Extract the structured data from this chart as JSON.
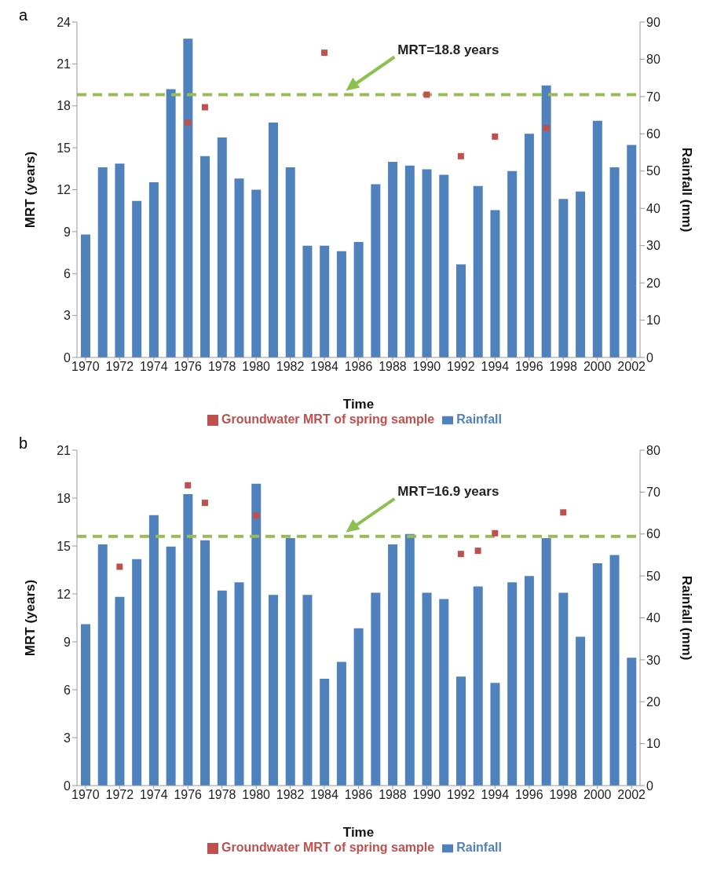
{
  "chart_data": [
    {
      "type": "bar",
      "title": "a",
      "xlabel": "Time",
      "ylabel": "MRT (years)",
      "y2label": "Rainfall (mm)",
      "x": [
        1970,
        1971,
        1972,
        1973,
        1974,
        1975,
        1976,
        1977,
        1978,
        1979,
        1980,
        1981,
        1982,
        1983,
        1984,
        1985,
        1986,
        1987,
        1988,
        1989,
        1990,
        1991,
        1992,
        1993,
        1994,
        1995,
        1996,
        1997,
        1998,
        1999,
        2000,
        2001,
        2002
      ],
      "xlim": [
        1969.5,
        2002.5
      ],
      "xticks": [
        1970,
        1972,
        1974,
        1976,
        1978,
        1980,
        1982,
        1984,
        1986,
        1988,
        1990,
        1992,
        1994,
        1996,
        1998,
        2000,
        2002
      ],
      "ylim": [
        0,
        24
      ],
      "yticks": [
        0,
        3,
        6,
        9,
        12,
        15,
        18,
        21,
        24
      ],
      "y2lim": [
        0,
        90
      ],
      "y2ticks": [
        0,
        10,
        20,
        30,
        40,
        50,
        60,
        70,
        80,
        90
      ],
      "series": [
        {
          "name": "Rainfall",
          "axis": "y2",
          "color": "#4f81bd",
          "values": [
            33,
            51,
            52,
            42,
            47,
            72,
            85.5,
            54,
            59,
            48,
            45,
            63,
            51,
            30,
            30,
            28.5,
            31,
            46.5,
            52.5,
            51.5,
            50.5,
            49,
            25,
            46,
            39.5,
            50,
            60,
            73,
            42.5,
            44.5,
            63.5,
            51,
            57
          ]
        },
        {
          "name": "Groundwater MRT of spring sample",
          "type": "scatter",
          "color": "#c0504d",
          "marker": "square",
          "x": [
            1976,
            1977,
            1984,
            1990,
            1992,
            1994,
            1997
          ],
          "values": [
            16.8,
            17.9,
            21.8,
            18.8,
            14.4,
            15.8,
            16.4
          ]
        }
      ],
      "ref_lines": [
        {
          "axis": "y",
          "value": 18.8,
          "label": "MRT=18.8 years",
          "color": "#9bbb59",
          "line_style": "dashed"
        }
      ],
      "legend": "bottom",
      "grid": false
    },
    {
      "type": "bar",
      "title": "b",
      "xlabel": "Time",
      "ylabel": "MRT (years)",
      "y2label": "Rainfall (mm)",
      "x": [
        1970,
        1971,
        1972,
        1973,
        1974,
        1975,
        1976,
        1977,
        1978,
        1979,
        1980,
        1981,
        1982,
        1983,
        1984,
        1985,
        1986,
        1987,
        1988,
        1989,
        1990,
        1991,
        1992,
        1993,
        1994,
        1995,
        1996,
        1997,
        1998,
        1999,
        2000,
        2001,
        2002
      ],
      "xlim": [
        1969.5,
        2002.5
      ],
      "xticks": [
        1970,
        1972,
        1974,
        1976,
        1978,
        1980,
        1982,
        1984,
        1986,
        1988,
        1990,
        1992,
        1994,
        1996,
        1998,
        2000,
        2002
      ],
      "ylim": [
        0,
        21
      ],
      "yticks": [
        0,
        3,
        6,
        9,
        12,
        15,
        18,
        21
      ],
      "y2lim": [
        0,
        80
      ],
      "y2ticks": [
        0,
        10,
        20,
        30,
        40,
        50,
        60,
        70,
        80
      ],
      "series": [
        {
          "name": "Rainfall",
          "axis": "y2",
          "color": "#4f81bd",
          "values": [
            38.5,
            57.5,
            45,
            54,
            64.5,
            57,
            69.5,
            58.5,
            46.5,
            48.5,
            72,
            45.5,
            59,
            45.5,
            25.5,
            29.5,
            37.5,
            46,
            57.5,
            60,
            46,
            44.5,
            26,
            47.5,
            24.5,
            48.5,
            50,
            59,
            46,
            35.5,
            53,
            55,
            30.5
          ]
        },
        {
          "name": "Groundwater MRT of spring sample",
          "type": "scatter",
          "color": "#c0504d",
          "marker": "square",
          "x": [
            1972,
            1976,
            1977,
            1980,
            1992,
            1993,
            1994,
            1998
          ],
          "values": [
            13.7,
            18.8,
            17.7,
            16.9,
            14.5,
            14.7,
            15.8,
            17.1
          ]
        }
      ],
      "ref_lines": [
        {
          "axis": "y",
          "value": 15.6,
          "color": "#9bbb59",
          "line_style": "dashed"
        }
      ],
      "annotations": [
        "MRT=16.9 years"
      ],
      "legend": "bottom",
      "grid": false
    }
  ]
}
